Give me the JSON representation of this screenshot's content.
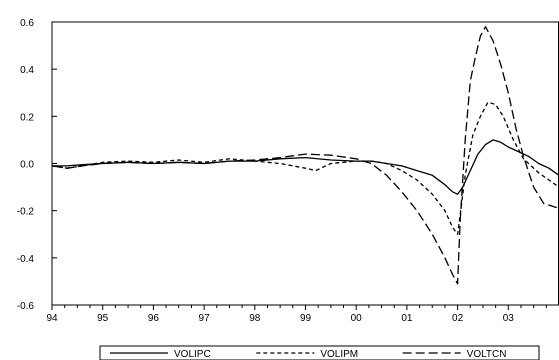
{
  "chart_data": {
    "type": "line",
    "title": "",
    "xlabel": "",
    "ylabel": "",
    "x_tick_labels": [
      "94",
      "95",
      "96",
      "97",
      "98",
      "99",
      "00",
      "01",
      "02",
      "03"
    ],
    "y_tick_labels": [
      "0.6",
      "0.4",
      "0.2",
      "0.0",
      "-0.2",
      "-0.4",
      "-0.6"
    ],
    "xlim": [
      1994.0,
      2004.0
    ],
    "ylim": [
      -0.6,
      0.6
    ],
    "y_ticks": [
      0.6,
      0.4,
      0.2,
      0.0,
      -0.2,
      -0.4,
      -0.6
    ],
    "grid": false,
    "legend_position": "bottom-center",
    "series": [
      {
        "name": "VOLIPC",
        "line_style": "solid",
        "color": "#000000",
        "x": [
          1994.0,
          1994.3,
          1994.6,
          1995.0,
          1995.5,
          1996.0,
          1996.5,
          1997.0,
          1997.5,
          1998.0,
          1998.5,
          1999.0,
          1999.5,
          2000.0,
          2000.3,
          2000.6,
          2000.9,
          2001.2,
          2001.5,
          2001.75,
          2001.9,
          2002.0,
          2002.1,
          2002.25,
          2002.4,
          2002.55,
          2002.7,
          2002.85,
          2003.0,
          2003.2,
          2003.4,
          2003.6,
          2003.8,
          2004.0
        ],
        "y": [
          -0.01,
          -0.01,
          -0.005,
          0.0,
          0.005,
          0.0,
          0.005,
          0.0,
          0.01,
          0.01,
          0.02,
          0.025,
          0.015,
          0.01,
          0.01,
          0.0,
          -0.01,
          -0.03,
          -0.05,
          -0.09,
          -0.12,
          -0.13,
          -0.1,
          -0.03,
          0.04,
          0.08,
          0.1,
          0.09,
          0.07,
          0.05,
          0.03,
          0.0,
          -0.02,
          -0.05
        ]
      },
      {
        "name": "VOLIPM",
        "line_style": "dash",
        "color": "#000000",
        "x": [
          1994.0,
          1994.3,
          1994.6,
          1995.0,
          1995.5,
          1996.0,
          1996.5,
          1997.0,
          1997.5,
          1998.0,
          1998.5,
          1999.0,
          1999.2,
          1999.5,
          2000.0,
          2000.3,
          2000.6,
          2000.9,
          2001.2,
          2001.5,
          2001.75,
          2001.9,
          2002.0,
          2002.05,
          2002.15,
          2002.3,
          2002.45,
          2002.6,
          2002.75,
          2002.9,
          2003.1,
          2003.3,
          2003.6,
          2003.8,
          2004.0
        ],
        "y": [
          -0.01,
          -0.02,
          -0.01,
          0.005,
          0.01,
          0.005,
          0.015,
          0.005,
          0.02,
          0.01,
          0.0,
          -0.02,
          -0.03,
          0.0,
          0.01,
          0.01,
          0.0,
          -0.03,
          -0.07,
          -0.13,
          -0.2,
          -0.27,
          -0.3,
          -0.22,
          -0.05,
          0.12,
          0.2,
          0.26,
          0.25,
          0.2,
          0.1,
          0.02,
          -0.04,
          -0.07,
          -0.1
        ]
      },
      {
        "name": "VOLTCN",
        "line_style": "long-dash",
        "color": "#000000",
        "x": [
          1994.0,
          1994.3,
          1994.6,
          1995.0,
          1995.5,
          1996.0,
          1996.5,
          1997.0,
          1997.5,
          1998.0,
          1998.5,
          1999.0,
          1999.5,
          2000.0,
          2000.3,
          2000.6,
          2000.9,
          2001.2,
          2001.5,
          2001.75,
          2001.9,
          2002.0,
          2002.05,
          2002.15,
          2002.25,
          2002.35,
          2002.45,
          2002.55,
          2002.7,
          2002.85,
          2003.0,
          2003.15,
          2003.3,
          2003.5,
          2003.7,
          2003.85,
          2004.0
        ],
        "y": [
          -0.01,
          -0.02,
          -0.01,
          0.0,
          0.005,
          0.0,
          0.005,
          0.0,
          0.01,
          0.015,
          0.025,
          0.04,
          0.035,
          0.02,
          0.0,
          -0.05,
          -0.12,
          -0.2,
          -0.3,
          -0.4,
          -0.47,
          -0.51,
          -0.25,
          0.1,
          0.35,
          0.45,
          0.54,
          0.58,
          0.52,
          0.42,
          0.3,
          0.15,
          0.03,
          -0.1,
          -0.17,
          -0.18,
          -0.19
        ]
      }
    ]
  }
}
